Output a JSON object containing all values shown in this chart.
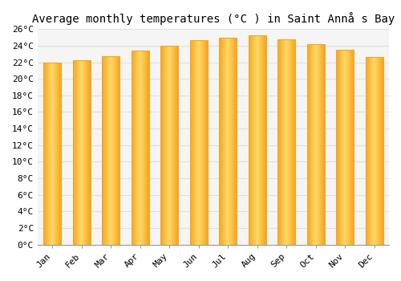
{
  "title": "Average monthly temperatures (°C ) in Saint Annå s Bay",
  "months": [
    "Jan",
    "Feb",
    "Mar",
    "Apr",
    "May",
    "Jun",
    "Jul",
    "Aug",
    "Sep",
    "Oct",
    "Nov",
    "Dec"
  ],
  "values": [
    22.0,
    22.2,
    22.7,
    23.4,
    24.0,
    24.7,
    25.0,
    25.3,
    24.8,
    24.2,
    23.5,
    22.6
  ],
  "bar_color_center": "#FFD966",
  "bar_color_edge": "#F5A623",
  "ylim": [
    0,
    26
  ],
  "yticks": [
    0,
    2,
    4,
    6,
    8,
    10,
    12,
    14,
    16,
    18,
    20,
    22,
    24,
    26
  ],
  "ytick_labels": [
    "0°C",
    "2°C",
    "4°C",
    "6°C",
    "8°C",
    "10°C",
    "12°C",
    "14°C",
    "16°C",
    "18°C",
    "20°C",
    "22°C",
    "24°C",
    "26°C"
  ],
  "background_color": "#ffffff",
  "plot_bg_color": "#f5f5f5",
  "grid_color": "#e0e0e0",
  "title_fontsize": 10,
  "tick_fontsize": 8,
  "bar_width": 0.6,
  "figsize": [
    5.0,
    3.5
  ],
  "dpi": 100
}
